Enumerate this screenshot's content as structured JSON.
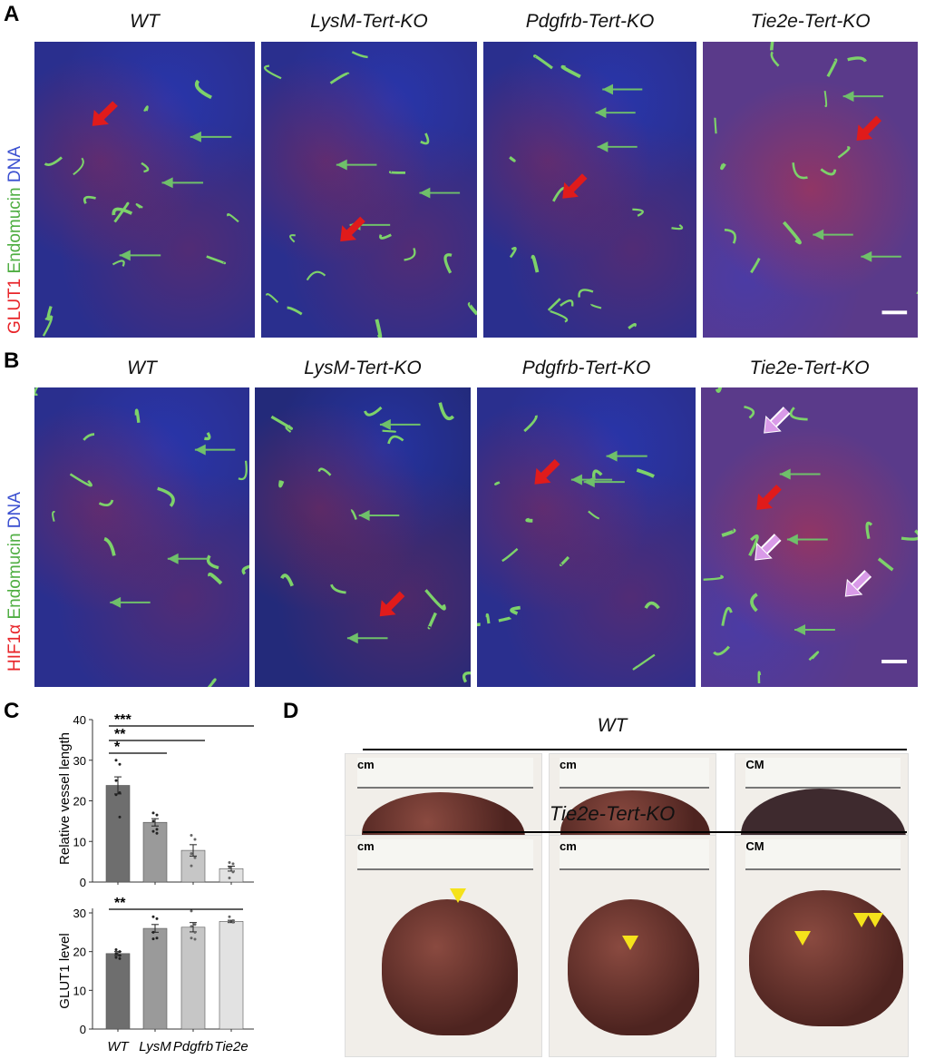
{
  "panel_a": {
    "label": "A",
    "side_label": {
      "glut1": "GLUT1",
      "endomucin": "Endomucin",
      "dna": "DNA"
    },
    "columns": [
      "WT",
      "LysM-Tert-KO",
      "Pdgfrb-Tert-KO",
      "Tie2e-Tert-KO"
    ]
  },
  "panel_b": {
    "label": "B",
    "side_label": {
      "hif1a": "HIF1α",
      "endomucin": "Endomucin",
      "dna": "DNA"
    },
    "columns": [
      "WT",
      "LysM-Tert-KO",
      "Pdgfrb-Tert-KO",
      "Tie2e-Tert-KO"
    ]
  },
  "panel_c": {
    "label": "C"
  },
  "panel_d": {
    "label": "D",
    "group_top": "WT",
    "group_bottom": "Tie2e-Tert-KO",
    "ruler_units": [
      "cm",
      "cm",
      "CM",
      "cm",
      "cm",
      "CM"
    ]
  },
  "colors": {
    "glut1": "#e8252a",
    "endomucin": "#7dd26a",
    "dna": "#3a4fd0",
    "arrow_red": "#e01b1b",
    "arrow_green": "#6fc06a",
    "arrow_pink": "#d99ae8",
    "arrowhead_yellow": "#f5e21b"
  },
  "chart_data": [
    {
      "type": "bar",
      "ylabel": "Relative vessel length",
      "categories": [
        "WT",
        "LysM",
        "Pdgfrb",
        "Tie2e"
      ],
      "values": [
        23.8,
        14.7,
        7.8,
        3.3
      ],
      "errors": [
        2.1,
        0.9,
        1.4,
        0.6
      ],
      "points": [
        [
          30,
          29,
          25,
          22,
          21.5,
          16
        ],
        [
          17,
          16.5,
          15,
          13,
          12.5,
          12
        ],
        [
          11.5,
          10.5,
          7,
          6,
          4
        ],
        [
          4.8,
          4.5,
          3.5,
          2.5,
          1
        ]
      ],
      "ylim": [
        0,
        40
      ],
      "yticks": [
        0,
        10,
        20,
        30,
        40
      ],
      "significance": [
        {
          "label": "*",
          "from": "WT",
          "to": "LysM"
        },
        {
          "label": "**",
          "from": "WT",
          "to": "Pdgfrb"
        },
        {
          "label": "***",
          "from": "WT",
          "to": "Tie2e"
        }
      ]
    },
    {
      "type": "bar",
      "ylabel": "GLUT1 level",
      "categories": [
        "WT",
        "LysM",
        "Pdgfrb",
        "Tie2e"
      ],
      "values": [
        19.5,
        26,
        26.3,
        27.8
      ],
      "errors": [
        0.5,
        1,
        1.2,
        0.3
      ],
      "points": [
        [
          20.5,
          20,
          19.5,
          19,
          18.5,
          18.2
        ],
        [
          29,
          28.5,
          25,
          23.5,
          23.3
        ],
        [
          30.5,
          27,
          26.5,
          25,
          23.5,
          23.2
        ],
        [
          29,
          28,
          27.8,
          27.6
        ]
      ],
      "ylim": [
        0,
        30
      ],
      "yticks": [
        0,
        10,
        20,
        30
      ],
      "significance": [
        {
          "label": "**",
          "from": "WT",
          "to": "Tie2e"
        }
      ]
    }
  ]
}
